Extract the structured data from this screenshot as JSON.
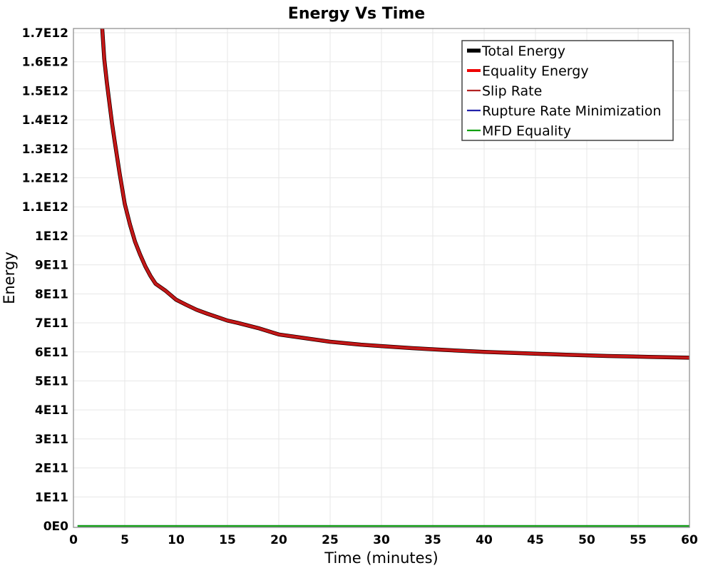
{
  "chart_data": {
    "type": "line",
    "title": "Energy Vs Time",
    "xlabel": "Time (minutes)",
    "ylabel": "Energy",
    "xlim": [
      0,
      60
    ],
    "ylim_e11": [
      0,
      17.2
    ],
    "grid": true,
    "legend_position": "top-right-inside",
    "background_color": "#ffffff",
    "axis_border_color": "#888888",
    "grid_color": "#e7e7e7",
    "x_ticks": [
      {
        "label": "0",
        "value": 0
      },
      {
        "label": "5",
        "value": 5
      },
      {
        "label": "10",
        "value": 10
      },
      {
        "label": "15",
        "value": 15
      },
      {
        "label": "20",
        "value": 20
      },
      {
        "label": "25",
        "value": 25
      },
      {
        "label": "30",
        "value": 30
      },
      {
        "label": "35",
        "value": 35
      },
      {
        "label": "40",
        "value": 40
      },
      {
        "label": "45",
        "value": 45
      },
      {
        "label": "50",
        "value": 50
      },
      {
        "label": "55",
        "value": 55
      },
      {
        "label": "60",
        "value": 60
      }
    ],
    "y_ticks": [
      {
        "label": "0E0",
        "value_e11": 0
      },
      {
        "label": "1E11",
        "value_e11": 1
      },
      {
        "label": "2E11",
        "value_e11": 2
      },
      {
        "label": "3E11",
        "value_e11": 3
      },
      {
        "label": "4E11",
        "value_e11": 4
      },
      {
        "label": "5E11",
        "value_e11": 5
      },
      {
        "label": "6E11",
        "value_e11": 6
      },
      {
        "label": "7E11",
        "value_e11": 7
      },
      {
        "label": "8E11",
        "value_e11": 8
      },
      {
        "label": "9E11",
        "value_e11": 9
      },
      {
        "label": "1E12",
        "value_e11": 10
      },
      {
        "label": "1.1E12",
        "value_e11": 11
      },
      {
        "label": "1.2E12",
        "value_e11": 12
      },
      {
        "label": "1.3E12",
        "value_e11": 13
      },
      {
        "label": "1.4E12",
        "value_e11": 14
      },
      {
        "label": "1.5E12",
        "value_e11": 15
      },
      {
        "label": "1.6E12",
        "value_e11": 16
      },
      {
        "label": "1.7E12",
        "value_e11": 17
      }
    ],
    "curve": {
      "comment": "shared decay curve followed by Total Energy, Equality Energy and Slip Rate (overplotted)",
      "x": [
        2.7,
        3.0,
        3.25,
        3.5,
        3.75,
        4.0,
        4.5,
        5.0,
        5.5,
        6.0,
        6.5,
        7.0,
        7.5,
        8.0,
        9.0,
        10,
        11,
        12,
        13,
        14,
        15,
        16,
        18,
        20,
        22,
        25,
        28,
        30,
        33,
        36,
        40,
        44,
        48,
        52,
        56,
        60
      ],
      "y_e11": [
        17.7,
        16.1,
        15.3,
        14.6,
        13.9,
        13.3,
        12.15,
        11.1,
        10.4,
        9.8,
        9.35,
        8.95,
        8.62,
        8.35,
        8.1,
        7.8,
        7.62,
        7.45,
        7.32,
        7.2,
        7.08,
        7.0,
        6.82,
        6.6,
        6.5,
        6.35,
        6.25,
        6.2,
        6.13,
        6.07,
        6.0,
        5.95,
        5.9,
        5.86,
        5.83,
        5.8
      ]
    },
    "zero_line": {
      "x_start": 0.4,
      "x_end": 60,
      "y_e11": 0
    },
    "series": [
      {
        "name": "Total Energy",
        "color": "#000000",
        "line_width": 5.5,
        "data": "curve"
      },
      {
        "name": "Equality Energy",
        "color": "#ee0000",
        "line_width": 4.0,
        "data": "curve"
      },
      {
        "name": "Slip Rate",
        "color": "#b22222",
        "line_width": 2.2,
        "data": "curve"
      },
      {
        "name": "Rupture Rate Minimization",
        "color": "#2222aa",
        "line_width": 2.2,
        "data": "zero_line"
      },
      {
        "name": "MFD Equality",
        "color": "#10a010",
        "line_width": 2.2,
        "data": "zero_line"
      }
    ]
  }
}
